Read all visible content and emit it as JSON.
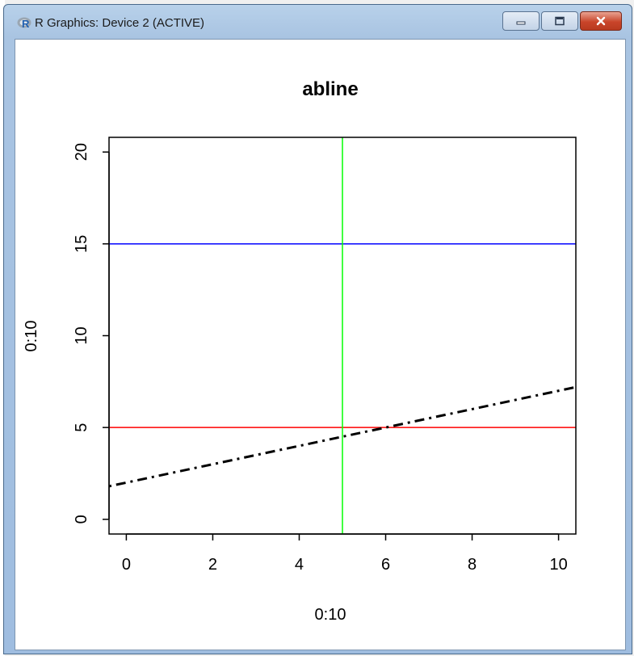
{
  "window": {
    "title": "R Graphics: Device 2 (ACTIVE)",
    "app_icon": "r-logo-icon",
    "buttons": {
      "minimize_icon": "minimize-icon",
      "maximize_icon": "maximize-icon",
      "close_icon": "close-icon"
    }
  },
  "chart_data": {
    "type": "line",
    "title": "abline",
    "xlabel": "0:10",
    "ylabel": "0:10",
    "xlim": [
      -0.4,
      10.4
    ],
    "ylim": [
      -0.8,
      20.8
    ],
    "xticks": [
      0,
      2,
      4,
      6,
      8,
      10
    ],
    "yticks": [
      0,
      5,
      10,
      15,
      20
    ],
    "grid": false,
    "lines": [
      {
        "kind": "horizontal",
        "y": 5,
        "color": "#ff0000",
        "style": "solid"
      },
      {
        "kind": "horizontal",
        "y": 15,
        "color": "#0000ff",
        "style": "solid"
      },
      {
        "kind": "vertical",
        "x": 5,
        "color": "#00ff00",
        "style": "solid"
      },
      {
        "kind": "slope",
        "intercept": 2,
        "slope": 0.5,
        "color": "#000000",
        "style": "dotdash"
      }
    ]
  }
}
